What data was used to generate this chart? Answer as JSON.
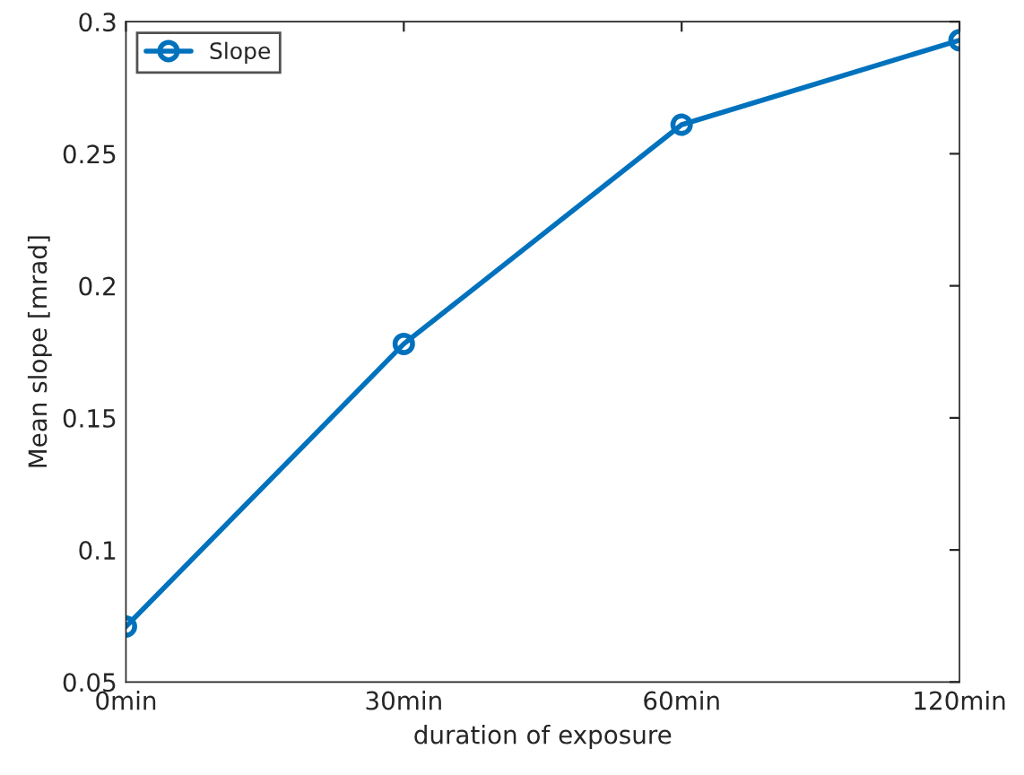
{
  "chart_data": {
    "type": "line",
    "xlabel": "duration of exposure",
    "ylabel": "Mean slope [mrad]",
    "categories": [
      "0min",
      "30min",
      "60min",
      "120min"
    ],
    "series": [
      {
        "name": "Slope",
        "color": "#0072bd",
        "values": [
          0.071,
          0.178,
          0.261,
          0.293
        ]
      }
    ],
    "ylim": [
      0.05,
      0.3
    ],
    "yticks": [
      0.05,
      0.1,
      0.15,
      0.2,
      0.25,
      0.3
    ],
    "marker": "circle",
    "line_style": "solid",
    "legend": "top left",
    "grid": false
  }
}
